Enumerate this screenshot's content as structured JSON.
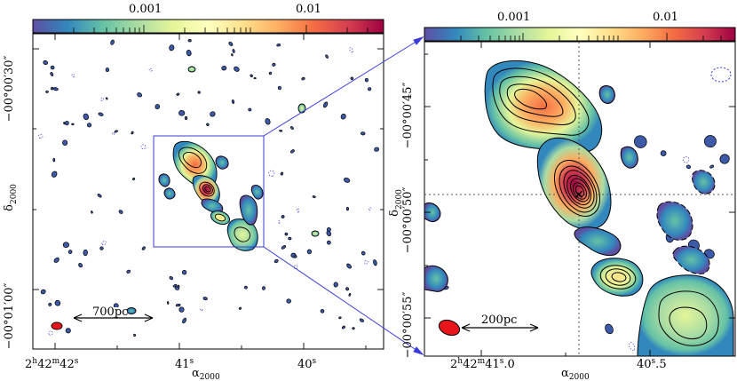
{
  "colormap": {
    "name": "Spectral_r",
    "stops": [
      "#5e4fa2",
      "#3288bd",
      "#66c2a5",
      "#abdda4",
      "#e6f598",
      "#ffffbf",
      "#fee08b",
      "#fdae61",
      "#f46d43",
      "#d53e4f",
      "#9e0142"
    ]
  },
  "left_panel": {
    "colorbar": {
      "ticks": [
        "0.001",
        "0.01"
      ]
    },
    "y_ticks": [
      "−00°00′30″",
      "−00°01′00″"
    ],
    "ylabel_main": "δ",
    "ylabel_sub": "2000",
    "x_ticks": [
      {
        "h": "2",
        "m": "42",
        "s": "42"
      },
      {
        "s": "41"
      },
      {
        "s": "40"
      }
    ],
    "xlabel_main": "α",
    "xlabel_sub": "2000",
    "scalebar": "700pc"
  },
  "right_panel": {
    "colorbar": {
      "ticks": [
        "0.001",
        "0.01"
      ]
    },
    "y_ticks": [
      "−00°00′45″",
      "−00°00′50″",
      "−00°00′55″"
    ],
    "ylabel_main": "δ",
    "ylabel_sub": "2000",
    "x_ticks": [
      {
        "h": "2",
        "m": "42",
        "s": "41",
        "frac": "0"
      },
      {
        "s": "40",
        "frac": "5"
      }
    ],
    "xlabel_main": "α",
    "xlabel_sub": "2000",
    "scalebar": "200pc"
  },
  "colors": {
    "zoom_box": "#3b3bdb",
    "beam": "#e8151b",
    "contour": "#000000"
  }
}
